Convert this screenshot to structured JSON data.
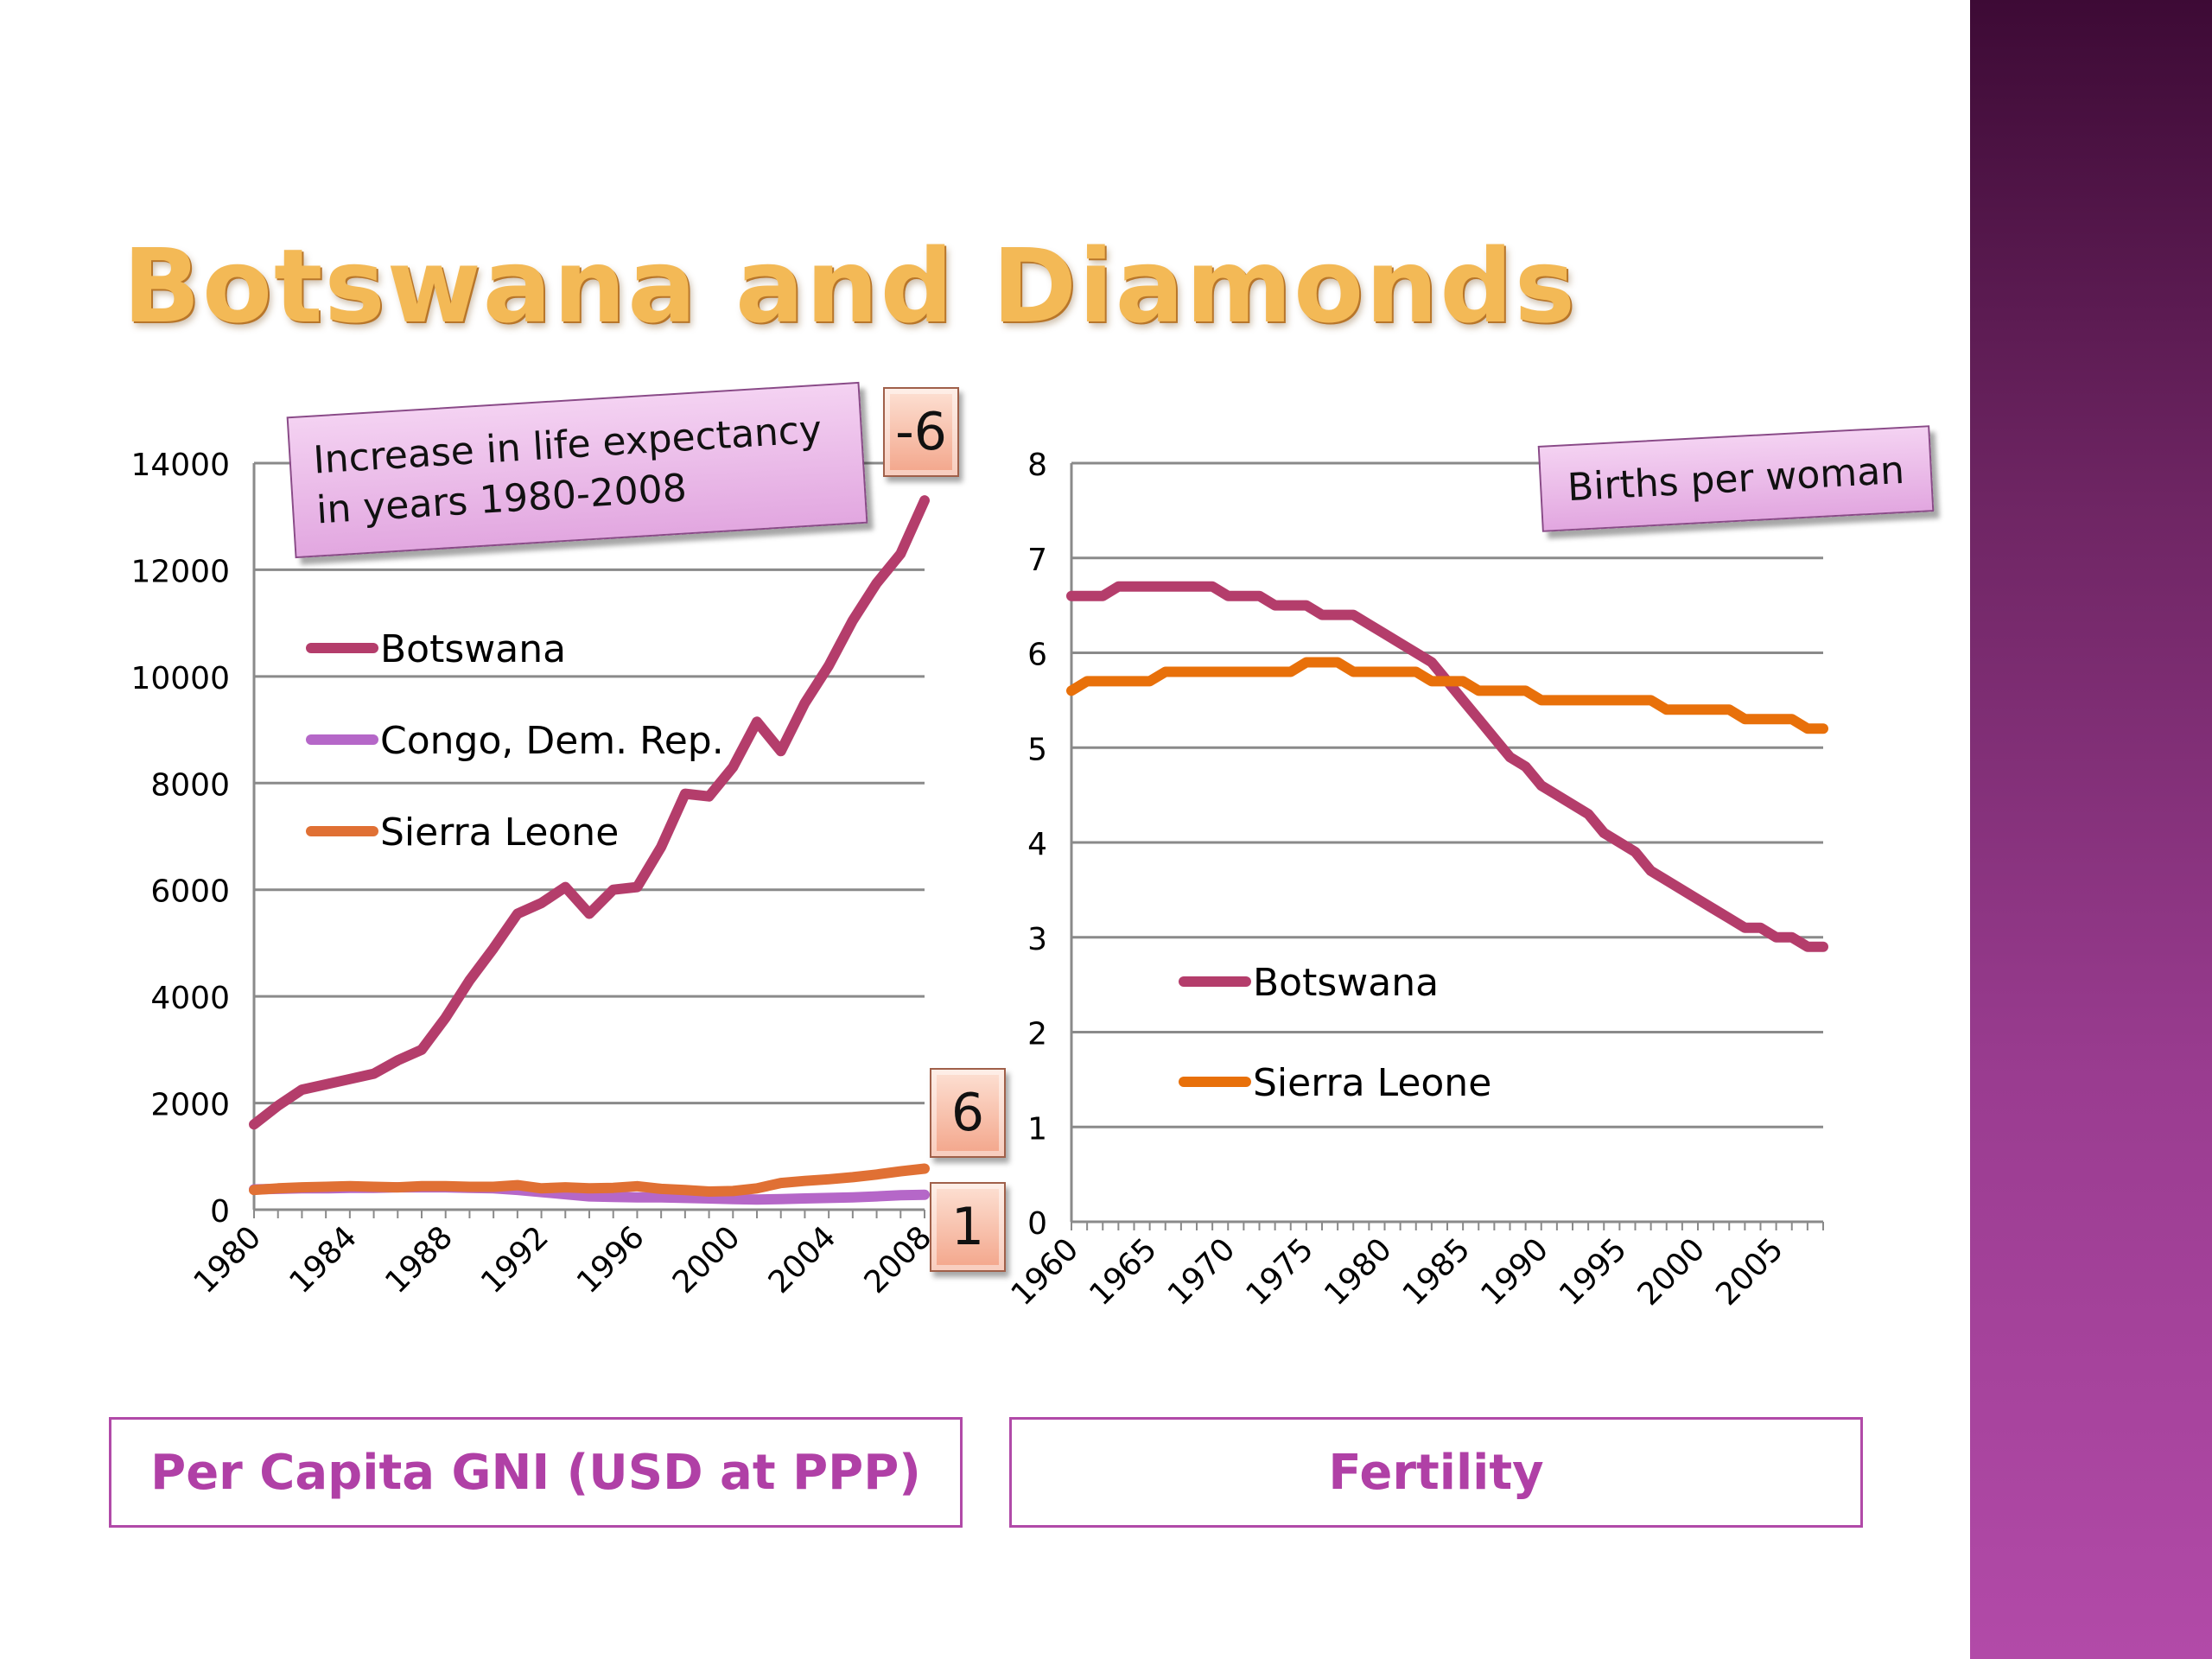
{
  "slide": {
    "title": "Botswana and Diamonds",
    "caption_left": "Per Capita GNI (USD at PPP)",
    "caption_right": "Fertility",
    "callout_left_line1": "Increase in life expectancy",
    "callout_left_line2": "in years 1980-2008",
    "callout_right": "Births per woman",
    "badge_botswana": "-6",
    "badge_sierra_leone": "6",
    "badge_congo": "1",
    "colors": {
      "title": "#f3b956",
      "caption": "#b040a6",
      "band": "#9a3c90",
      "botswana": "#b43d6b",
      "congo": "#b567c8",
      "sierra_leone_gni": "#e07034",
      "sierra_leone_fert": "#e8700a"
    }
  },
  "chart_data": [
    {
      "type": "line",
      "title": "",
      "xlabel": "",
      "ylabel": "",
      "x": [
        1980,
        1981,
        1982,
        1983,
        1984,
        1985,
        1986,
        1987,
        1988,
        1989,
        1990,
        1991,
        1992,
        1993,
        1994,
        1995,
        1996,
        1997,
        1998,
        1999,
        2000,
        2001,
        2002,
        2003,
        2004,
        2005,
        2006,
        2007,
        2008
      ],
      "xticks": [
        "1980",
        "1984",
        "1988",
        "1992",
        "1996",
        "2000",
        "2004",
        "2008"
      ],
      "yticks": [
        "0",
        "2000",
        "4000",
        "6000",
        "8000",
        "10000",
        "12000",
        "14000"
      ],
      "ylim": [
        0,
        14000
      ],
      "grid": true,
      "legend_position": "upper-left",
      "series": [
        {
          "name": "Botswana",
          "color": "#b43d6b",
          "values": [
            1600,
            1950,
            2250,
            2350,
            2450,
            2550,
            2800,
            3000,
            3600,
            4300,
            4900,
            5550,
            5750,
            6050,
            5550,
            6000,
            6050,
            6800,
            7800,
            7750,
            8300,
            9150,
            8600,
            9500,
            10200,
            11050,
            11750,
            12300,
            13300
          ]
        },
        {
          "name": "Congo, Dem. Rep.",
          "color": "#b567c8",
          "values": [
            380,
            390,
            400,
            400,
            410,
            410,
            420,
            420,
            420,
            410,
            400,
            370,
            330,
            290,
            250,
            240,
            230,
            230,
            220,
            210,
            200,
            190,
            200,
            210,
            220,
            230,
            250,
            270,
            280
          ]
        },
        {
          "name": "Sierra Leone",
          "color": "#e07034",
          "values": [
            370,
            400,
            420,
            430,
            440,
            430,
            420,
            440,
            440,
            430,
            430,
            460,
            400,
            420,
            400,
            410,
            440,
            390,
            370,
            340,
            350,
            400,
            500,
            540,
            570,
            610,
            660,
            720,
            770
          ]
        }
      ]
    },
    {
      "type": "line",
      "title": "",
      "xlabel": "",
      "ylabel": "",
      "x": [
        1960,
        1961,
        1962,
        1963,
        1964,
        1965,
        1966,
        1967,
        1968,
        1969,
        1970,
        1971,
        1972,
        1973,
        1974,
        1975,
        1976,
        1977,
        1978,
        1979,
        1980,
        1981,
        1982,
        1983,
        1984,
        1985,
        1986,
        1987,
        1988,
        1989,
        1990,
        1991,
        1992,
        1993,
        1994,
        1995,
        1996,
        1997,
        1998,
        1999,
        2000,
        2001,
        2002,
        2003,
        2004,
        2005,
        2006,
        2007,
        2008
      ],
      "xticks": [
        "1960",
        "1965",
        "1970",
        "1975",
        "1980",
        "1985",
        "1990",
        "1995",
        "2000",
        "2005"
      ],
      "yticks": [
        "0",
        "1",
        "2",
        "3",
        "4",
        "5",
        "6",
        "7",
        "8"
      ],
      "ylim": [
        0,
        8
      ],
      "grid": true,
      "legend_position": "lower-left",
      "series": [
        {
          "name": "Botswana",
          "color": "#b43d6b",
          "values": [
            6.6,
            6.6,
            6.6,
            6.7,
            6.7,
            6.7,
            6.7,
            6.7,
            6.7,
            6.7,
            6.6,
            6.6,
            6.6,
            6.5,
            6.5,
            6.5,
            6.4,
            6.4,
            6.4,
            6.3,
            6.2,
            6.1,
            6.0,
            5.9,
            5.7,
            5.5,
            5.3,
            5.1,
            4.9,
            4.8,
            4.6,
            4.5,
            4.4,
            4.3,
            4.1,
            4.0,
            3.9,
            3.7,
            3.6,
            3.5,
            3.4,
            3.3,
            3.2,
            3.1,
            3.1,
            3.0,
            3.0,
            2.9,
            2.9
          ]
        },
        {
          "name": "Sierra Leone",
          "color": "#e8700a",
          "values": [
            5.6,
            5.7,
            5.7,
            5.7,
            5.7,
            5.7,
            5.8,
            5.8,
            5.8,
            5.8,
            5.8,
            5.8,
            5.8,
            5.8,
            5.8,
            5.9,
            5.9,
            5.9,
            5.8,
            5.8,
            5.8,
            5.8,
            5.8,
            5.7,
            5.7,
            5.7,
            5.6,
            5.6,
            5.6,
            5.6,
            5.5,
            5.5,
            5.5,
            5.5,
            5.5,
            5.5,
            5.5,
            5.5,
            5.4,
            5.4,
            5.4,
            5.4,
            5.4,
            5.3,
            5.3,
            5.3,
            5.3,
            5.2,
            5.2
          ]
        }
      ]
    }
  ]
}
